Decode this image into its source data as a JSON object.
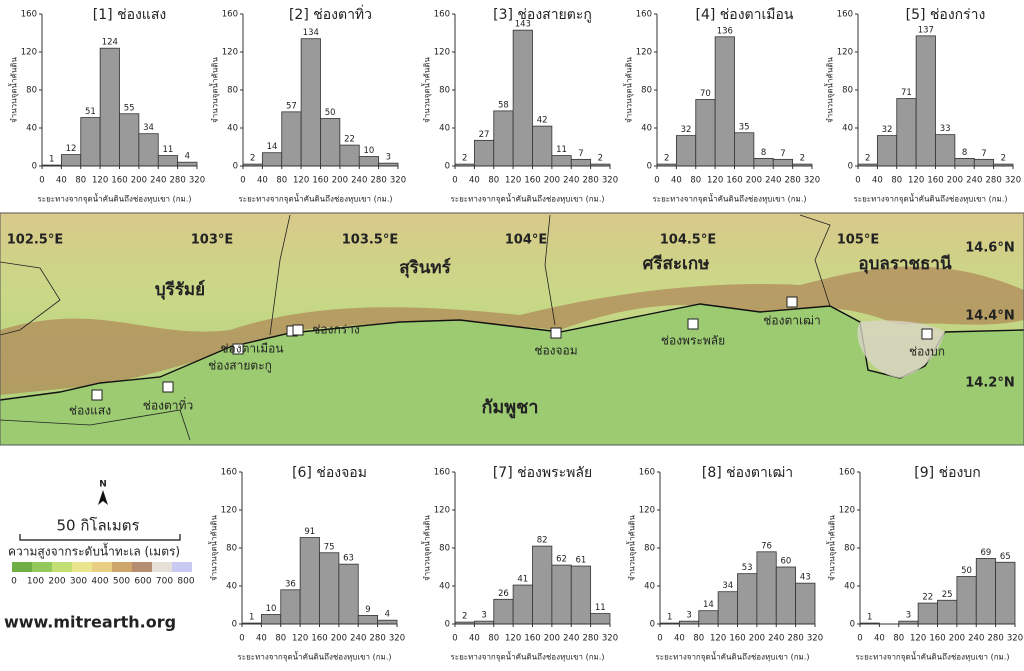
{
  "chart_data": [
    {
      "type": "histogram",
      "title": "[1] ช่องแสง",
      "xlabel": "ระยะทางจากจุดน้ำคันดินถึงช่องหุบเขา (กม.)",
      "ylabel": "จำนวนจุดน้ำคันดิน",
      "bins": [
        0,
        40,
        80,
        120,
        160,
        200,
        240,
        280,
        320
      ],
      "values": [
        1,
        12,
        51,
        124,
        55,
        34,
        11,
        4
      ],
      "color": "#9a9a9a",
      "xlim": [
        0,
        320
      ],
      "xticks": [
        0,
        40,
        80,
        120,
        160,
        200,
        240,
        280,
        320
      ],
      "ylim": [
        0,
        160
      ],
      "yticks": [
        0,
        40,
        80,
        120,
        160
      ]
    },
    {
      "type": "histogram",
      "title": "[2] ช่องตาทิ่ว",
      "xlabel": "ระยะทางจากจุดน้ำคันดินถึงช่องหุบเขา (กม.)",
      "ylabel": "จำนวนจุดน้ำคันดิน",
      "bins": [
        0,
        40,
        80,
        120,
        160,
        200,
        240,
        280,
        320
      ],
      "values": [
        2,
        14,
        57,
        134,
        50,
        22,
        10,
        3
      ],
      "color": "#9a9a9a",
      "xlim": [
        0,
        320
      ],
      "xticks": [
        0,
        40,
        80,
        120,
        160,
        200,
        240,
        280,
        320
      ],
      "ylim": [
        0,
        160
      ],
      "yticks": [
        0,
        40,
        80,
        120,
        160
      ]
    },
    {
      "type": "histogram",
      "title": "[3] ช่องสายตะกู",
      "xlabel": "ระยะทางจากจุดน้ำคันดินถึงช่องหุบเขา (กม.)",
      "ylabel": "จำนวนจุดน้ำคันดิน",
      "bins": [
        0,
        40,
        80,
        120,
        160,
        200,
        240,
        280,
        320
      ],
      "values": [
        2,
        27,
        58,
        143,
        42,
        11,
        7,
        2
      ],
      "color": "#9a9a9a",
      "xlim": [
        0,
        320
      ],
      "xticks": [
        0,
        40,
        80,
        120,
        160,
        200,
        240,
        280,
        320
      ],
      "ylim": [
        0,
        160
      ],
      "yticks": [
        0,
        40,
        80,
        120,
        160
      ]
    },
    {
      "type": "histogram",
      "title": "[4] ช่องตาเมือน",
      "xlabel": "ระยะทางจากจุดน้ำคันดินถึงช่องหุบเขา (กม.)",
      "ylabel": "จำนวนจุดน้ำคันดิน",
      "bins": [
        0,
        40,
        80,
        120,
        160,
        200,
        240,
        280,
        320
      ],
      "values": [
        2,
        32,
        70,
        136,
        35,
        8,
        7,
        2
      ],
      "color": "#9a9a9a",
      "xlim": [
        0,
        320
      ],
      "xticks": [
        0,
        40,
        80,
        120,
        160,
        200,
        240,
        280,
        320
      ],
      "ylim": [
        0,
        160
      ],
      "yticks": [
        0,
        40,
        80,
        120,
        160
      ]
    },
    {
      "type": "histogram",
      "title": "[5] ช่องกร่าง",
      "xlabel": "ระยะทางจากจุดน้ำคันดินถึงช่องหุบเขา (กม.)",
      "ylabel": "จำนวนจุดน้ำคันดิน",
      "bins": [
        0,
        40,
        80,
        120,
        160,
        200,
        240,
        280,
        320
      ],
      "values": [
        2,
        32,
        71,
        137,
        33,
        8,
        7,
        2
      ],
      "color": "#9a9a9a",
      "xlim": [
        0,
        320
      ],
      "xticks": [
        0,
        40,
        80,
        120,
        160,
        200,
        240,
        280,
        320
      ],
      "ylim": [
        0,
        160
      ],
      "yticks": [
        0,
        40,
        80,
        120,
        160
      ]
    },
    {
      "type": "histogram",
      "title": "[6] ช่องจอม",
      "xlabel": "ระยะทางจากจุดน้ำคันดินถึงช่องหุบเขา (กม.)",
      "ylabel": "จำนวนจุดน้ำคันดิน",
      "bins": [
        0,
        40,
        80,
        120,
        160,
        200,
        240,
        280,
        320
      ],
      "values": [
        1,
        10,
        36,
        91,
        75,
        63,
        9,
        4
      ],
      "color": "#9a9a9a",
      "xlim": [
        0,
        320
      ],
      "xticks": [
        0,
        40,
        80,
        120,
        160,
        200,
        240,
        280,
        320
      ],
      "ylim": [
        0,
        160
      ],
      "yticks": [
        0,
        40,
        80,
        120,
        160
      ]
    },
    {
      "type": "histogram",
      "title": "[7] ช่องพระพลัย",
      "xlabel": "ระยะทางจากจุดน้ำคันดินถึงช่องหุบเขา (กม.)",
      "ylabel": "จำนวนจุดน้ำคันดิน",
      "bins": [
        0,
        40,
        80,
        120,
        160,
        200,
        240,
        280,
        320
      ],
      "values": [
        2,
        3,
        26,
        41,
        82,
        62,
        61,
        11
      ],
      "color": "#9a9a9a",
      "xlim": [
        0,
        320
      ],
      "xticks": [
        0,
        40,
        80,
        120,
        160,
        200,
        240,
        280,
        320
      ],
      "ylim": [
        0,
        160
      ],
      "yticks": [
        0,
        40,
        80,
        120,
        160
      ]
    },
    {
      "type": "histogram",
      "title": "[8] ช่องตาเฒ่า",
      "xlabel": "ระยะทางจากจุดน้ำคันดินถึงช่องหุบเขา (กม.)",
      "ylabel": "จำนวนจุดน้ำคันดิน",
      "bins": [
        0,
        40,
        80,
        120,
        160,
        200,
        240,
        280,
        320
      ],
      "values": [
        1,
        3,
        14,
        34,
        53,
        76,
        60,
        43
      ],
      "color": "#9a9a9a",
      "xlim": [
        0,
        320
      ],
      "xticks": [
        0,
        40,
        80,
        120,
        160,
        200,
        240,
        280,
        320
      ],
      "ylim": [
        0,
        160
      ],
      "yticks": [
        0,
        40,
        80,
        120,
        160
      ]
    },
    {
      "type": "histogram",
      "title": "[9] ช่องบก",
      "xlabel": "ระยะทางจากจุดน้ำคันดินถึงช่องหุบเขา (กม.)",
      "ylabel": "จำนวนจุดน้ำคันดิน",
      "bins": [
        0,
        40,
        80,
        120,
        160,
        200,
        240,
        280,
        320
      ],
      "values": [
        1,
        0,
        3,
        22,
        25,
        50,
        69,
        65
      ],
      "value_labels": [
        "1",
        null,
        "3",
        "22",
        "25",
        "50",
        "69",
        "65"
      ],
      "color": "#9a9a9a",
      "xlim": [
        0,
        320
      ],
      "xticks": [
        0,
        40,
        80,
        120,
        160,
        200,
        240,
        280,
        320
      ],
      "ylim": [
        0,
        160
      ],
      "yticks": [
        0,
        40,
        80,
        120,
        160
      ]
    }
  ],
  "map": {
    "lon_labels": [
      "102.5°E",
      "103°E",
      "103.5°E",
      "104°E",
      "104.5°E",
      "105°E"
    ],
    "lat_labels": [
      "14.6°N",
      "14.4°N",
      "14.2°N"
    ],
    "regions": [
      "บุรีรัมย์",
      "สุรินทร์",
      "ศรีสะเกษ",
      "อุบลราชธานี",
      "กัมพูชา"
    ],
    "passes": [
      "ช่องแสง",
      "ช่องตาทิ่ว",
      "ช่องสายตะกู",
      "ช่องตาเมือน",
      "ช่องกร่าง",
      "ช่องจอม",
      "ช่องพระพลัย",
      "ช่องตาเฒ่า",
      "ช่องบก"
    ]
  },
  "legend": {
    "north": "N",
    "scale": "50 กิโลเมตร",
    "elevation_title": "ความสูงจากระดับน้ำทะเล (เมตร)",
    "elevation_ticks": [
      0,
      100,
      200,
      300,
      400,
      500,
      600,
      700,
      800
    ],
    "colors": [
      "#6fae45",
      "#94c85a",
      "#c3df74",
      "#e9e58c",
      "#e8cf84",
      "#cfa66a",
      "#b58e72",
      "#e6e0d8",
      "#c9c9f2"
    ],
    "website": "www.mitrearth.org"
  }
}
